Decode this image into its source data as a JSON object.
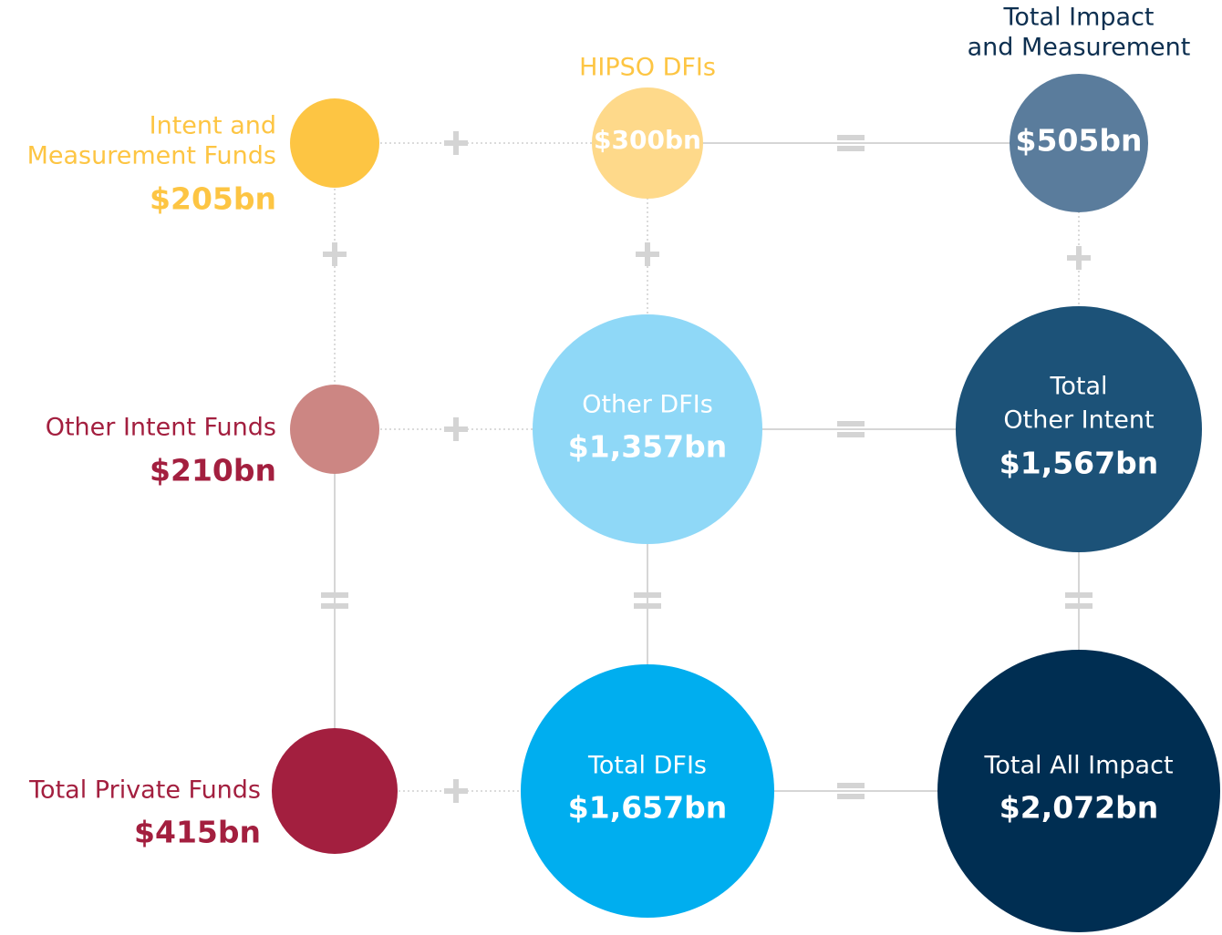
{
  "nodes": [
    {
      "label": [
        "Intent and",
        "Measurement Funds"
      ],
      "value": "$205bn"
    },
    {
      "label": [
        "HIPSO DFIs"
      ],
      "value": "$300bn"
    },
    {
      "label": [
        "Total Impact",
        "and Measurement"
      ],
      "value": "$505bn"
    },
    {
      "label": [
        "Other Intent Funds"
      ],
      "value": "$210bn"
    },
    {
      "label": [
        "Other DFIs"
      ],
      "value": "$1,357bn"
    },
    {
      "label": [
        "Total",
        "Other Intent"
      ],
      "value": "$1,567bn"
    },
    {
      "label": [
        "Total Private Funds"
      ],
      "value": "$415bn"
    },
    {
      "label": [
        "Total DFIs"
      ],
      "value": "$1,657bn"
    },
    {
      "label": [
        "Total All Impact"
      ],
      "value": "$2,072bn"
    }
  ]
}
